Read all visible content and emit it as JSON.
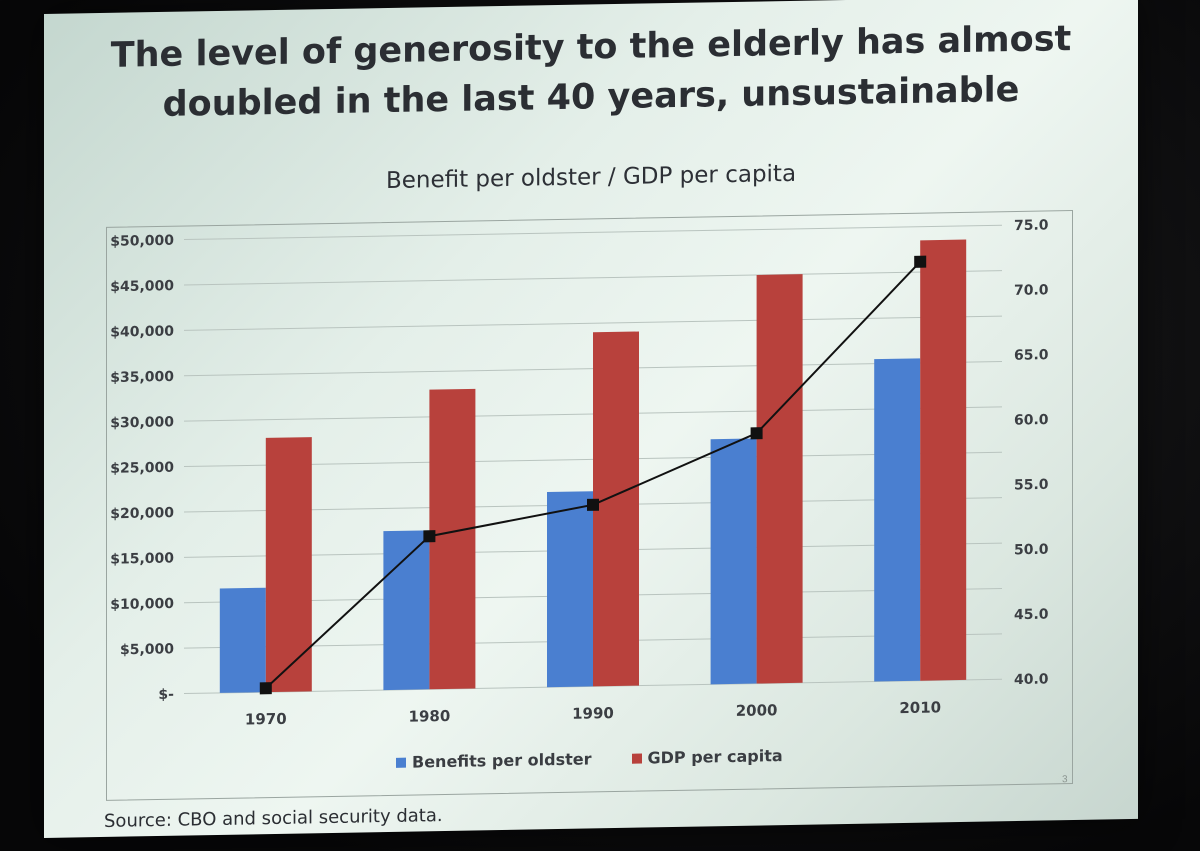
{
  "slide": {
    "title_line1": "The level of generosity to the elderly has almost",
    "title_line2": "doubled in the last 40 years, unsustainable",
    "source": "Source: CBO and social security data.",
    "page_number": "3"
  },
  "chart_data": {
    "type": "bar",
    "title": "Benefit per oldster / GDP per capita",
    "categories": [
      "1970",
      "1980",
      "1990",
      "2000",
      "2010"
    ],
    "series": [
      {
        "name": "Benefits per oldster",
        "type": "bar",
        "axis": "left",
        "color": "#4a7fd0",
        "values": [
          11500,
          17500,
          21500,
          27000,
          35500
        ]
      },
      {
        "name": "GDP per capita",
        "type": "bar",
        "axis": "left",
        "color": "#b8413c",
        "values": [
          28000,
          33000,
          39000,
          45000,
          48500
        ]
      },
      {
        "type": "line",
        "axis": "right",
        "color": "#111111",
        "values": [
          40.3,
          51.8,
          54.0,
          59.3,
          72.3
        ]
      }
    ],
    "y_left": {
      "range": [
        0,
        50000
      ],
      "ticks": [
        "$-",
        "$5,000",
        "$10,000",
        "$15,000",
        "$20,000",
        "$25,000",
        "$30,000",
        "$35,000",
        "$40,000",
        "$45,000",
        "$50,000"
      ]
    },
    "y_right": {
      "range": [
        40,
        75
      ],
      "ticks": [
        "40.0",
        "45.0",
        "50.0",
        "55.0",
        "60.0",
        "65.0",
        "70.0",
        "75.0"
      ]
    },
    "grid": true,
    "legend_position": "bottom"
  }
}
